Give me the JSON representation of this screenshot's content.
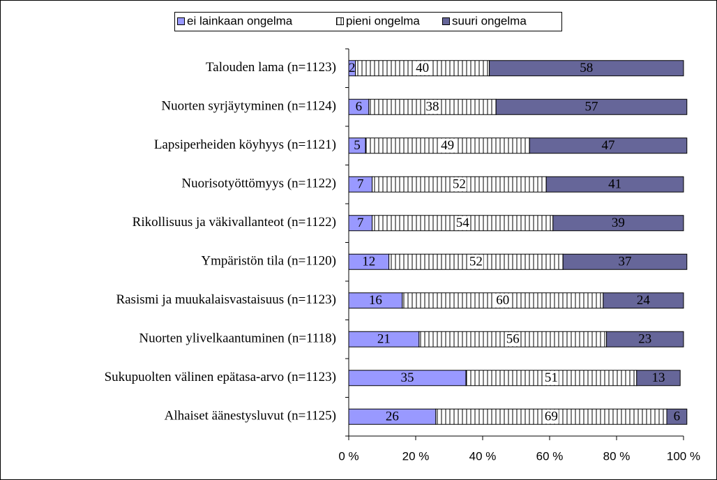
{
  "chart_data": {
    "type": "stacked-barh",
    "categories": [
      "Talouden lama (n=1123)",
      "Nuorten syrjäytyminen (n=1124)",
      "Lapsiperheiden köyhyys (n=1121)",
      "Nuorisotyöttömyys (n=1122)",
      "Rikollisuus ja väkivallanteot (n=1122)",
      "Ympäristön tila (n=1120)",
      "Rasismi ja muukalaisvastaisuus (n=1123)",
      "Nuorten ylivelkaantuminen (n=1118)",
      "Sukupuolten välinen epätasa-arvo (n=1123)",
      "Alhaiset äänestysluvut (n=1125)"
    ],
    "series": [
      {
        "name": "ei lainkaan ongelma",
        "color": "#9999ff",
        "values": [
          2,
          6,
          5,
          7,
          7,
          12,
          16,
          21,
          35,
          26
        ]
      },
      {
        "name": "pieni ongelma",
        "color": "#ffffff",
        "pattern": "vertical-lines",
        "values": [
          40,
          38,
          49,
          52,
          54,
          52,
          60,
          56,
          51,
          69
        ]
      },
      {
        "name": "suuri ongelma",
        "color": "#666699",
        "values": [
          58,
          57,
          47,
          41,
          39,
          37,
          24,
          23,
          13,
          6
        ]
      }
    ],
    "xlim": [
      0,
      100
    ],
    "xticks": [
      {
        "value": 0,
        "label": "0 %"
      },
      {
        "value": 20,
        "label": "20 %"
      },
      {
        "value": 40,
        "label": "40 %"
      },
      {
        "value": 60,
        "label": "60 %"
      },
      {
        "value": 80,
        "label": "80 %"
      },
      {
        "value": 100,
        "label": "100 %"
      }
    ],
    "legend": "top"
  }
}
